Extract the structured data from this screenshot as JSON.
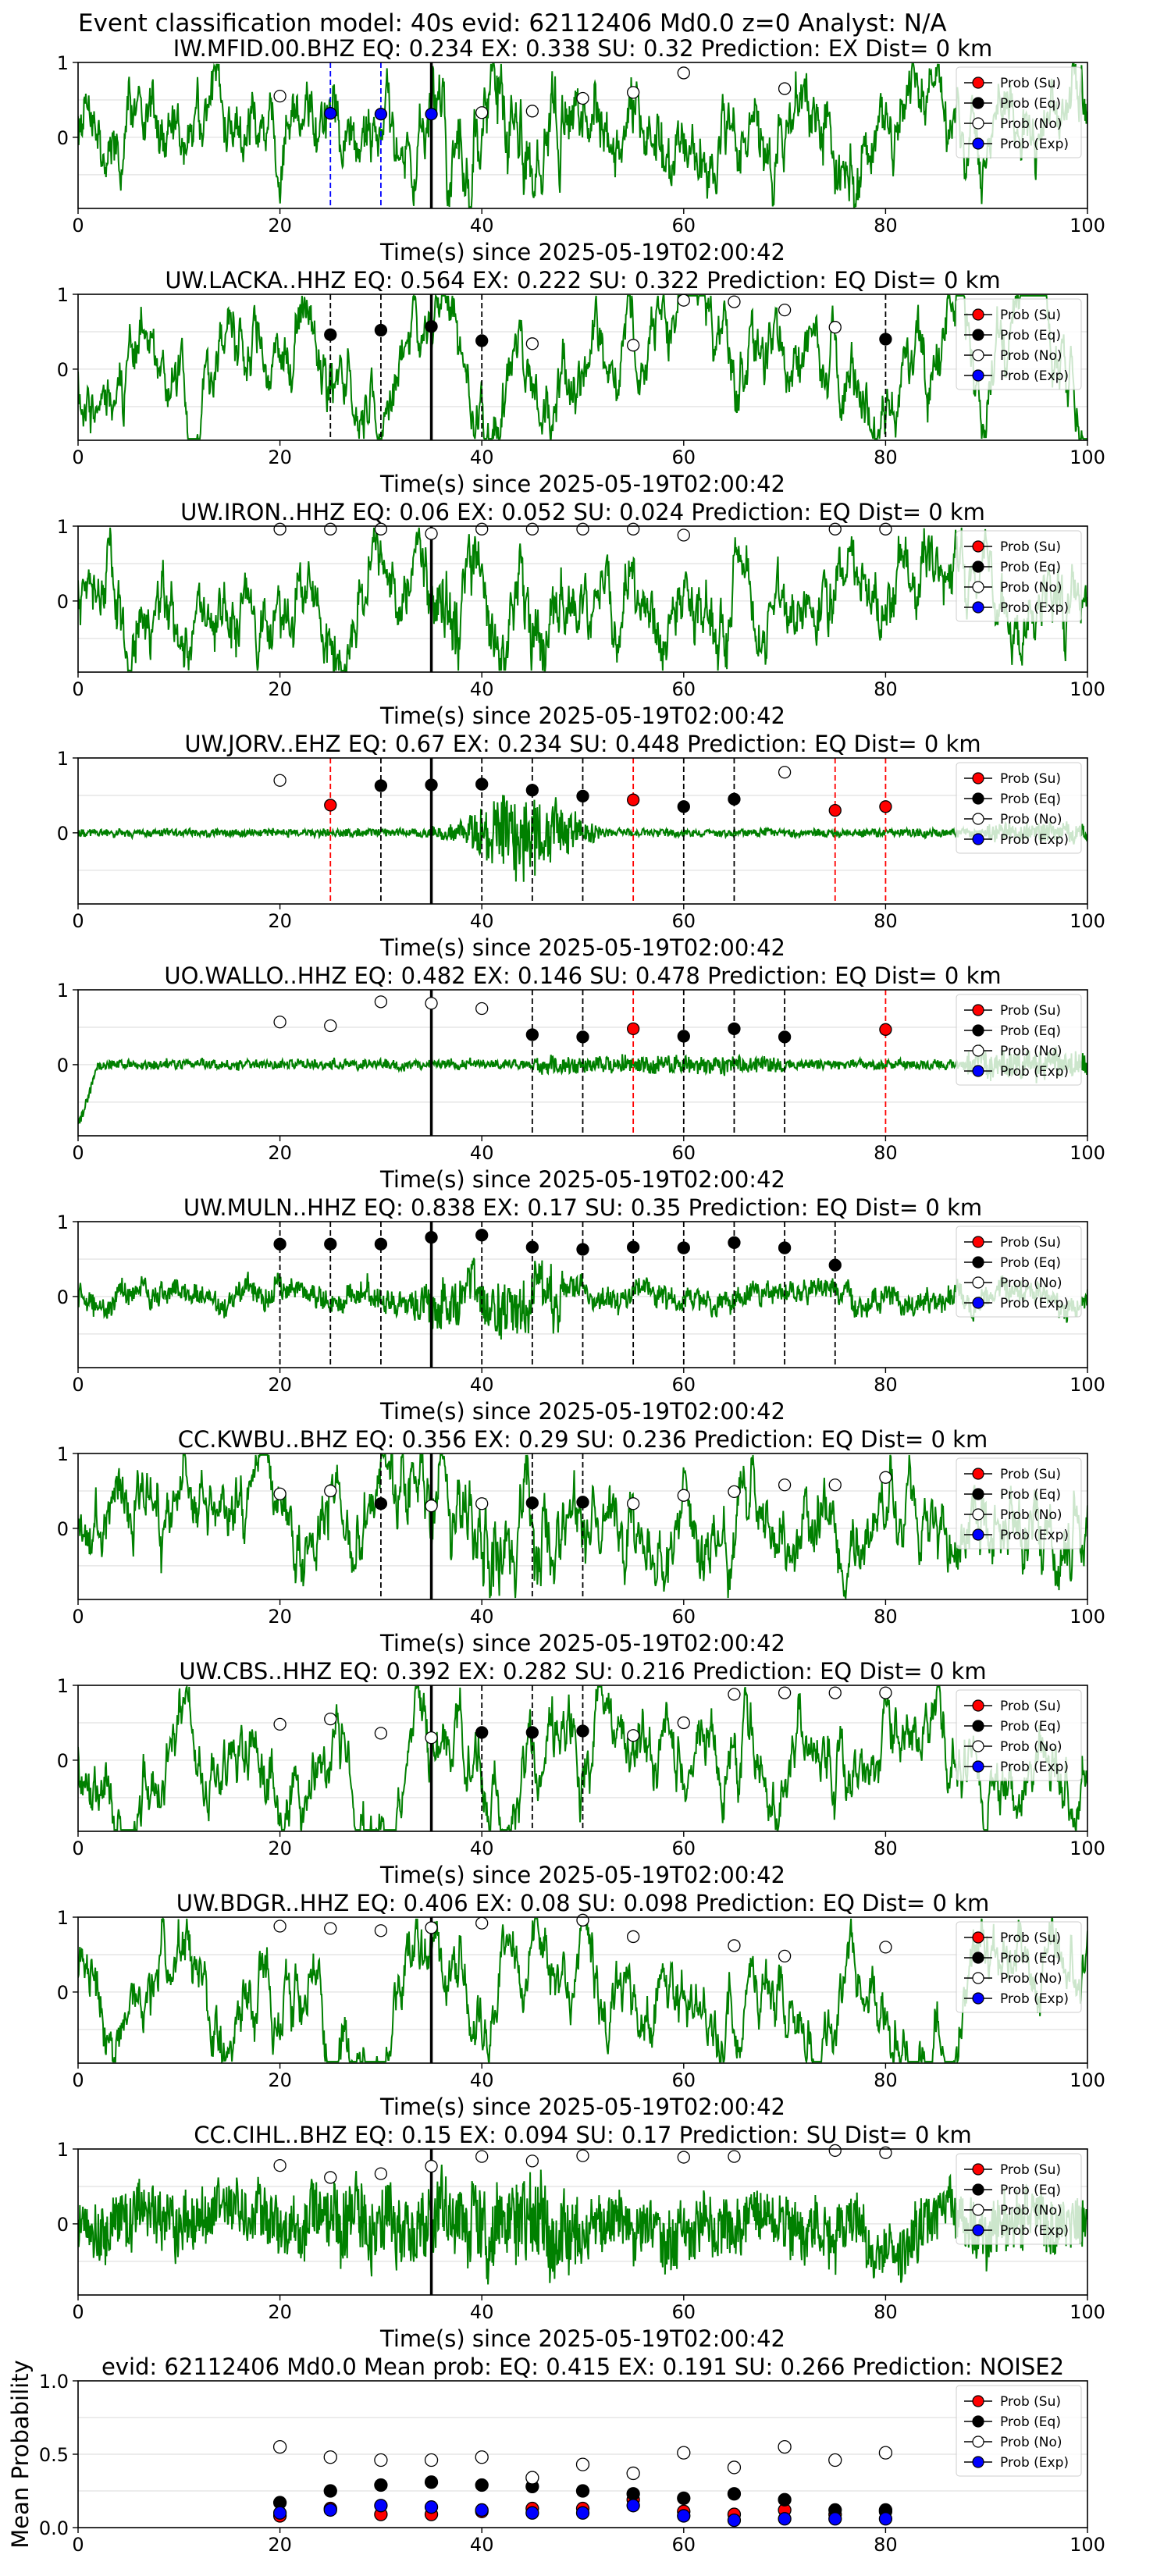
{
  "figure": {
    "suptitle": "Event classification model: 40s evid: 62112406 Md0.0 z=0 Analyst: N/A"
  },
  "legend_labels": [
    "Prob (Su)",
    "Prob (Eq)",
    "Prob (No)",
    "Prob (Exp)"
  ],
  "colors": {
    "trace": "#008000",
    "su": "#ff0000",
    "eq": "#000000",
    "no": "#ffffff",
    "exp": "#0000ff",
    "arrival_line": "#000000"
  },
  "chart_data": [
    {
      "type": "line",
      "title": "IW.MFID.00.BHZ   EQ: 0.234   EX: 0.338   SU: 0.32   Prediction: EX    Dist= 0 km",
      "xlabel": "Time(s) since 2025-05-19T02:00:42",
      "xlim": [
        0,
        100
      ],
      "ylim": [
        -0.95,
        1
      ],
      "xticks": [
        "0",
        "20",
        "40",
        "60",
        "80",
        "100"
      ],
      "yticks": [
        "0",
        "1"
      ],
      "grid": "horizontal",
      "legend_placement": "top-right",
      "arrival_time": 35,
      "trace": {
        "style": "broadband",
        "seed": 11
      },
      "windows": [
        {
          "t": 20,
          "prob": 0.55,
          "class": "no"
        },
        {
          "t": 25,
          "prob": 0.32,
          "class": "exp"
        },
        {
          "t": 30,
          "prob": 0.31,
          "class": "exp"
        },
        {
          "t": 35,
          "prob": 0.31,
          "class": "exp"
        },
        {
          "t": 40,
          "prob": 0.33,
          "class": "no"
        },
        {
          "t": 45,
          "prob": 0.35,
          "class": "no"
        },
        {
          "t": 50,
          "prob": 0.52,
          "class": "no"
        },
        {
          "t": 55,
          "prob": 0.6,
          "class": "no"
        },
        {
          "t": 60,
          "prob": 0.86,
          "class": "no"
        },
        {
          "t": 70,
          "prob": 0.65,
          "class": "no"
        }
      ]
    },
    {
      "type": "line",
      "title": "UW.LACKA..HHZ   EQ: 0.564  EX: 0.222  SU: 0.322   Prediction: EQ    Dist= 0 km",
      "xlabel": "Time(s) since 2025-05-19T02:00:42",
      "xlim": [
        0,
        100
      ],
      "ylim": [
        -0.95,
        1
      ],
      "xticks": [
        "0",
        "20",
        "40",
        "60",
        "80",
        "100"
      ],
      "yticks": [
        "0",
        "1"
      ],
      "grid": "horizontal",
      "legend_placement": "top-right",
      "arrival_time": 35,
      "trace": {
        "style": "longperiod",
        "seed": 23
      },
      "windows": [
        {
          "t": 25,
          "prob": 0.46,
          "class": "eq"
        },
        {
          "t": 30,
          "prob": 0.52,
          "class": "eq"
        },
        {
          "t": 35,
          "prob": 0.57,
          "class": "eq"
        },
        {
          "t": 40,
          "prob": 0.38,
          "class": "eq"
        },
        {
          "t": 45,
          "prob": 0.34,
          "class": "no"
        },
        {
          "t": 55,
          "prob": 0.32,
          "class": "no"
        },
        {
          "t": 60,
          "prob": 0.92,
          "class": "no"
        },
        {
          "t": 65,
          "prob": 0.9,
          "class": "no"
        },
        {
          "t": 70,
          "prob": 0.79,
          "class": "no"
        },
        {
          "t": 75,
          "prob": 0.56,
          "class": "no"
        },
        {
          "t": 80,
          "prob": 0.4,
          "class": "eq"
        }
      ]
    },
    {
      "type": "line",
      "title": "UW.IRON..HHZ   EQ: 0.06  EX: 0.052  SU: 0.024   Prediction: EQ    Dist= 0 km",
      "xlabel": "Time(s) since 2025-05-19T02:00:42",
      "xlim": [
        0,
        100
      ],
      "ylim": [
        -0.95,
        1
      ],
      "xticks": [
        "0",
        "20",
        "40",
        "60",
        "80",
        "100"
      ],
      "yticks": [
        "0",
        "1"
      ],
      "grid": "horizontal",
      "legend_placement": "top-right",
      "arrival_time": 35,
      "trace": {
        "style": "broadband",
        "seed": 37
      },
      "windows": [
        {
          "t": 20,
          "prob": 0.96,
          "class": "no"
        },
        {
          "t": 25,
          "prob": 0.96,
          "class": "no"
        },
        {
          "t": 30,
          "prob": 0.96,
          "class": "no"
        },
        {
          "t": 35,
          "prob": 0.9,
          "class": "no"
        },
        {
          "t": 40,
          "prob": 0.96,
          "class": "no"
        },
        {
          "t": 45,
          "prob": 0.96,
          "class": "no"
        },
        {
          "t": 50,
          "prob": 0.96,
          "class": "no"
        },
        {
          "t": 55,
          "prob": 0.96,
          "class": "no"
        },
        {
          "t": 60,
          "prob": 0.88,
          "class": "no"
        },
        {
          "t": 75,
          "prob": 0.96,
          "class": "no"
        },
        {
          "t": 80,
          "prob": 0.96,
          "class": "no"
        }
      ]
    },
    {
      "type": "line",
      "title": "UW.JORV..EHZ   EQ: 0.67  EX: 0.234  SU: 0.448   Prediction: EQ    Dist= 0 km",
      "xlabel": "Time(s) since 2025-05-19T02:00:42",
      "xlim": [
        0,
        100
      ],
      "ylim": [
        -0.95,
        1
      ],
      "xticks": [
        "0",
        "20",
        "40",
        "60",
        "80",
        "100"
      ],
      "yticks": [
        "0",
        "1"
      ],
      "grid": "horizontal",
      "legend_placement": "top-right",
      "arrival_time": 35,
      "trace": {
        "style": "burst",
        "seed": 41
      },
      "windows": [
        {
          "t": 20,
          "prob": 0.7,
          "class": "no"
        },
        {
          "t": 25,
          "prob": 0.37,
          "class": "su"
        },
        {
          "t": 30,
          "prob": 0.63,
          "class": "eq"
        },
        {
          "t": 35,
          "prob": 0.64,
          "class": "eq"
        },
        {
          "t": 40,
          "prob": 0.65,
          "class": "eq"
        },
        {
          "t": 45,
          "prob": 0.57,
          "class": "eq"
        },
        {
          "t": 50,
          "prob": 0.49,
          "class": "eq"
        },
        {
          "t": 55,
          "prob": 0.44,
          "class": "su"
        },
        {
          "t": 60,
          "prob": 0.35,
          "class": "eq"
        },
        {
          "t": 65,
          "prob": 0.45,
          "class": "eq"
        },
        {
          "t": 70,
          "prob": 0.81,
          "class": "no"
        },
        {
          "t": 75,
          "prob": 0.3,
          "class": "su"
        },
        {
          "t": 80,
          "prob": 0.35,
          "class": "su"
        }
      ]
    },
    {
      "type": "line",
      "title": "UO.WALLO..HHZ   EQ: 0.482  EX: 0.146  SU: 0.478   Prediction: EQ    Dist= 0 km",
      "xlabel": "Time(s) since 2025-05-19T02:00:42",
      "xlim": [
        0,
        100
      ],
      "ylim": [
        -0.95,
        1
      ],
      "xticks": [
        "0",
        "20",
        "40",
        "60",
        "80",
        "100"
      ],
      "yticks": [
        "0",
        "1"
      ],
      "grid": "horizontal",
      "legend_placement": "top-right",
      "arrival_time": 35,
      "trace": {
        "style": "quiet",
        "seed": 53
      },
      "windows": [
        {
          "t": 20,
          "prob": 0.57,
          "class": "no"
        },
        {
          "t": 25,
          "prob": 0.52,
          "class": "no"
        },
        {
          "t": 30,
          "prob": 0.84,
          "class": "no"
        },
        {
          "t": 35,
          "prob": 0.82,
          "class": "no"
        },
        {
          "t": 40,
          "prob": 0.75,
          "class": "no"
        },
        {
          "t": 45,
          "prob": 0.4,
          "class": "eq"
        },
        {
          "t": 50,
          "prob": 0.37,
          "class": "eq"
        },
        {
          "t": 55,
          "prob": 0.48,
          "class": "su"
        },
        {
          "t": 60,
          "prob": 0.38,
          "class": "eq"
        },
        {
          "t": 65,
          "prob": 0.48,
          "class": "eq"
        },
        {
          "t": 70,
          "prob": 0.37,
          "class": "eq"
        },
        {
          "t": 80,
          "prob": 0.47,
          "class": "su"
        }
      ]
    },
    {
      "type": "line",
      "title": "UW.MULN..HHZ   EQ: 0.838  EX: 0.17  SU: 0.35   Prediction: EQ    Dist= 0 km",
      "xlabel": "Time(s) since 2025-05-19T02:00:42",
      "xlim": [
        0,
        100
      ],
      "ylim": [
        -0.95,
        1
      ],
      "xticks": [
        "0",
        "20",
        "40",
        "60",
        "80",
        "100"
      ],
      "yticks": [
        "0",
        "1"
      ],
      "grid": "horizontal",
      "legend_placement": "top-right",
      "arrival_time": 35,
      "trace": {
        "style": "event",
        "seed": 67
      },
      "windows": [
        {
          "t": 20,
          "prob": 0.7,
          "class": "eq"
        },
        {
          "t": 25,
          "prob": 0.7,
          "class": "eq"
        },
        {
          "t": 30,
          "prob": 0.7,
          "class": "eq"
        },
        {
          "t": 35,
          "prob": 0.79,
          "class": "eq"
        },
        {
          "t": 40,
          "prob": 0.82,
          "class": "eq"
        },
        {
          "t": 45,
          "prob": 0.66,
          "class": "eq"
        },
        {
          "t": 50,
          "prob": 0.63,
          "class": "eq"
        },
        {
          "t": 55,
          "prob": 0.66,
          "class": "eq"
        },
        {
          "t": 60,
          "prob": 0.65,
          "class": "eq"
        },
        {
          "t": 65,
          "prob": 0.72,
          "class": "eq"
        },
        {
          "t": 70,
          "prob": 0.65,
          "class": "eq"
        },
        {
          "t": 75,
          "prob": 0.42,
          "class": "eq"
        }
      ]
    },
    {
      "type": "line",
      "title": "CC.KWBU..BHZ   EQ: 0.356  EX: 0.29  SU: 0.236   Prediction: EQ    Dist= 0 km",
      "xlabel": "Time(s) since 2025-05-19T02:00:42",
      "xlim": [
        0,
        100
      ],
      "ylim": [
        -0.95,
        1
      ],
      "xticks": [
        "0",
        "20",
        "40",
        "60",
        "80",
        "100"
      ],
      "yticks": [
        "0",
        "1"
      ],
      "grid": "horizontal",
      "legend_placement": "top-right",
      "arrival_time": 35,
      "trace": {
        "style": "broadband",
        "seed": 79
      },
      "windows": [
        {
          "t": 20,
          "prob": 0.46,
          "class": "no"
        },
        {
          "t": 25,
          "prob": 0.5,
          "class": "no"
        },
        {
          "t": 30,
          "prob": 0.33,
          "class": "eq"
        },
        {
          "t": 35,
          "prob": 0.3,
          "class": "no"
        },
        {
          "t": 40,
          "prob": 0.33,
          "class": "no"
        },
        {
          "t": 45,
          "prob": 0.34,
          "class": "eq"
        },
        {
          "t": 50,
          "prob": 0.35,
          "class": "eq"
        },
        {
          "t": 55,
          "prob": 0.33,
          "class": "no"
        },
        {
          "t": 60,
          "prob": 0.44,
          "class": "no"
        },
        {
          "t": 65,
          "prob": 0.49,
          "class": "no"
        },
        {
          "t": 70,
          "prob": 0.58,
          "class": "no"
        },
        {
          "t": 75,
          "prob": 0.58,
          "class": "no"
        },
        {
          "t": 80,
          "prob": 0.68,
          "class": "no"
        }
      ]
    },
    {
      "type": "line",
      "title": "UW.CBS..HHZ   EQ: 0.392  EX: 0.282  SU: 0.216   Prediction: EQ    Dist= 0 km",
      "xlabel": "Time(s) since 2025-05-19T02:00:42",
      "xlim": [
        0,
        100
      ],
      "ylim": [
        -0.95,
        1
      ],
      "xticks": [
        "0",
        "20",
        "40",
        "60",
        "80",
        "100"
      ],
      "yticks": [
        "0",
        "1"
      ],
      "grid": "horizontal",
      "legend_placement": "top-right",
      "arrival_time": 35,
      "trace": {
        "style": "longperiod",
        "seed": 83
      },
      "windows": [
        {
          "t": 20,
          "prob": 0.48,
          "class": "no"
        },
        {
          "t": 25,
          "prob": 0.55,
          "class": "no"
        },
        {
          "t": 30,
          "prob": 0.36,
          "class": "no"
        },
        {
          "t": 35,
          "prob": 0.3,
          "class": "no"
        },
        {
          "t": 40,
          "prob": 0.37,
          "class": "eq"
        },
        {
          "t": 45,
          "prob": 0.37,
          "class": "eq"
        },
        {
          "t": 50,
          "prob": 0.39,
          "class": "eq"
        },
        {
          "t": 55,
          "prob": 0.33,
          "class": "no"
        },
        {
          "t": 60,
          "prob": 0.5,
          "class": "no"
        },
        {
          "t": 65,
          "prob": 0.88,
          "class": "no"
        },
        {
          "t": 70,
          "prob": 0.9,
          "class": "no"
        },
        {
          "t": 75,
          "prob": 0.9,
          "class": "no"
        },
        {
          "t": 80,
          "prob": 0.9,
          "class": "no"
        }
      ]
    },
    {
      "type": "line",
      "title": "UW.BDGR..HHZ   EQ: 0.406  EX: 0.08  SU: 0.098   Prediction: EQ    Dist= 0 km",
      "xlabel": "Time(s) since 2025-05-19T02:00:42",
      "xlim": [
        0,
        100
      ],
      "ylim": [
        -0.95,
        1
      ],
      "xticks": [
        "0",
        "20",
        "40",
        "60",
        "80",
        "100"
      ],
      "yticks": [
        "0",
        "1"
      ],
      "grid": "horizontal",
      "legend_placement": "top-right",
      "arrival_time": 35,
      "trace": {
        "style": "longperiod",
        "seed": 97
      },
      "windows": [
        {
          "t": 20,
          "prob": 0.88,
          "class": "no"
        },
        {
          "t": 25,
          "prob": 0.85,
          "class": "no"
        },
        {
          "t": 30,
          "prob": 0.82,
          "class": "no"
        },
        {
          "t": 35,
          "prob": 0.86,
          "class": "no"
        },
        {
          "t": 40,
          "prob": 0.92,
          "class": "no"
        },
        {
          "t": 50,
          "prob": 0.96,
          "class": "no"
        },
        {
          "t": 55,
          "prob": 0.74,
          "class": "no"
        },
        {
          "t": 65,
          "prob": 0.62,
          "class": "no"
        },
        {
          "t": 70,
          "prob": 0.48,
          "class": "no"
        },
        {
          "t": 80,
          "prob": 0.6,
          "class": "no"
        }
      ]
    },
    {
      "type": "line",
      "title": "CC.CIHL..BHZ   EQ: 0.15  EX: 0.094  SU: 0.17   Prediction: SU    Dist= 0 km",
      "xlabel": "Time(s) since 2025-05-19T02:00:42",
      "xlim": [
        0,
        100
      ],
      "ylim": [
        -0.95,
        1
      ],
      "xticks": [
        "0",
        "20",
        "40",
        "60",
        "80",
        "100"
      ],
      "yticks": [
        "0",
        "1"
      ],
      "grid": "horizontal",
      "legend_placement": "top-right",
      "arrival_time": 35,
      "trace": {
        "style": "dense",
        "seed": 101
      },
      "windows": [
        {
          "t": 20,
          "prob": 0.78,
          "class": "no"
        },
        {
          "t": 25,
          "prob": 0.62,
          "class": "no"
        },
        {
          "t": 30,
          "prob": 0.67,
          "class": "no"
        },
        {
          "t": 35,
          "prob": 0.77,
          "class": "no"
        },
        {
          "t": 40,
          "prob": 0.9,
          "class": "no"
        },
        {
          "t": 45,
          "prob": 0.84,
          "class": "no"
        },
        {
          "t": 50,
          "prob": 0.91,
          "class": "no"
        },
        {
          "t": 60,
          "prob": 0.89,
          "class": "no"
        },
        {
          "t": 65,
          "prob": 0.9,
          "class": "no"
        },
        {
          "t": 75,
          "prob": 0.98,
          "class": "no"
        },
        {
          "t": 80,
          "prob": 0.95,
          "class": "no"
        }
      ]
    },
    {
      "type": "scatter",
      "title": "evid: 62112406  Md0.0   Mean prob:   EQ: 0.415  EX: 0.191  SU: 0.266   Prediction: NOISE2",
      "xlabel": "",
      "ylabel": "Mean Probability",
      "xlim": [
        0,
        100
      ],
      "ylim": [
        0,
        1
      ],
      "xticks": [
        "0",
        "20",
        "40",
        "60",
        "80",
        "100"
      ],
      "yticks": [
        "0.0",
        "0.5",
        "1.0"
      ],
      "grid": "horizontal",
      "legend_placement": "top-right",
      "x": [
        20,
        25,
        30,
        35,
        40,
        45,
        50,
        55,
        60,
        65,
        70,
        75,
        80
      ],
      "series": [
        {
          "name": "Prob (Su)",
          "class": "su",
          "values": [
            0.08,
            0.13,
            0.09,
            0.09,
            0.11,
            0.13,
            0.13,
            0.19,
            0.11,
            0.09,
            0.12,
            0.09,
            0.11
          ]
        },
        {
          "name": "Prob (Eq)",
          "class": "eq",
          "values": [
            0.17,
            0.25,
            0.29,
            0.31,
            0.29,
            0.28,
            0.25,
            0.23,
            0.2,
            0.23,
            0.19,
            0.12,
            0.12
          ]
        },
        {
          "name": "Prob (No)",
          "class": "no",
          "values": [
            0.55,
            0.48,
            0.46,
            0.46,
            0.48,
            0.34,
            0.43,
            0.37,
            0.51,
            0.41,
            0.55,
            0.46,
            0.51
          ]
        },
        {
          "name": "Prob (Exp)",
          "class": "exp",
          "values": [
            0.1,
            0.12,
            0.15,
            0.14,
            0.12,
            0.1,
            0.1,
            0.15,
            0.08,
            0.05,
            0.06,
            0.06,
            0.06
          ]
        }
      ]
    }
  ]
}
